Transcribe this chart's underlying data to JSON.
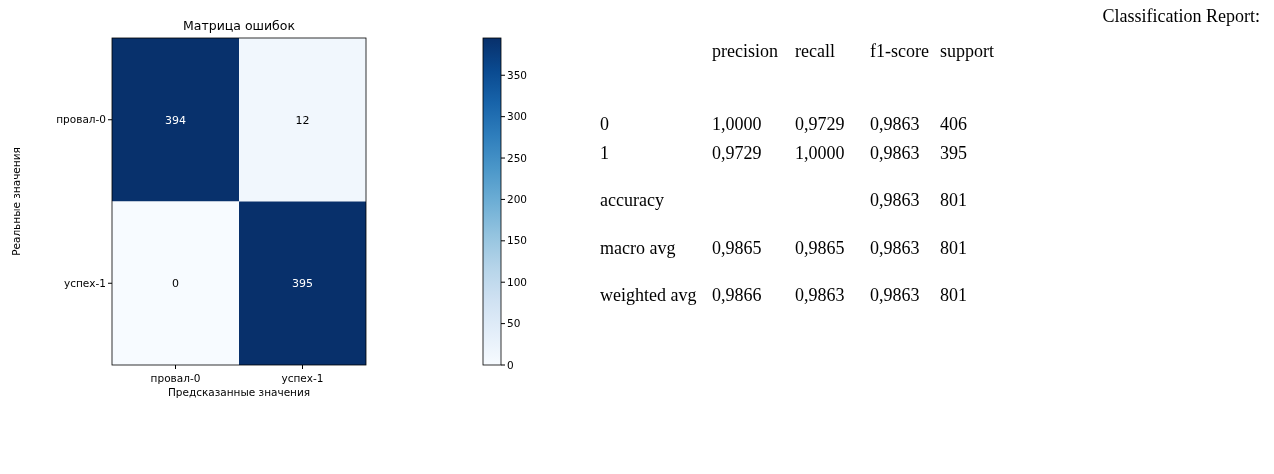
{
  "chart_data": [
    {
      "type": "heatmap",
      "title": "Матрица ошибок",
      "xlabel": "Предсказанные значения",
      "ylabel": "Реальные значения",
      "categories": [
        "провал-0",
        "успех-1"
      ],
      "y_categories": [
        "провал-0",
        "успех-1"
      ],
      "cells": [
        [
          394,
          12
        ],
        [
          0,
          395
        ]
      ],
      "clim": [
        0,
        395
      ],
      "cticks": [
        0,
        50,
        100,
        150,
        200,
        250,
        300,
        350
      ],
      "data_labels": true
    },
    {
      "type": "other",
      "title": "Classification Report:",
      "categories": [
        "precision",
        "recall",
        "f1-score",
        "support"
      ],
      "y_categories": [
        "0",
        "1",
        "accuracy",
        "macro avg",
        "weighted avg"
      ],
      "cell_labels": [
        [
          "1,0000",
          "0,9729",
          "0,9863",
          "406"
        ],
        [
          "0,9729",
          "1,0000",
          "0,9863",
          "395"
        ],
        [
          null,
          null,
          "0,9863",
          "801"
        ],
        [
          "0,9865",
          "0,9865",
          "0,9863",
          "801"
        ],
        [
          "0,9866",
          "0,9863",
          "0,9863",
          "801"
        ]
      ]
    }
  ]
}
